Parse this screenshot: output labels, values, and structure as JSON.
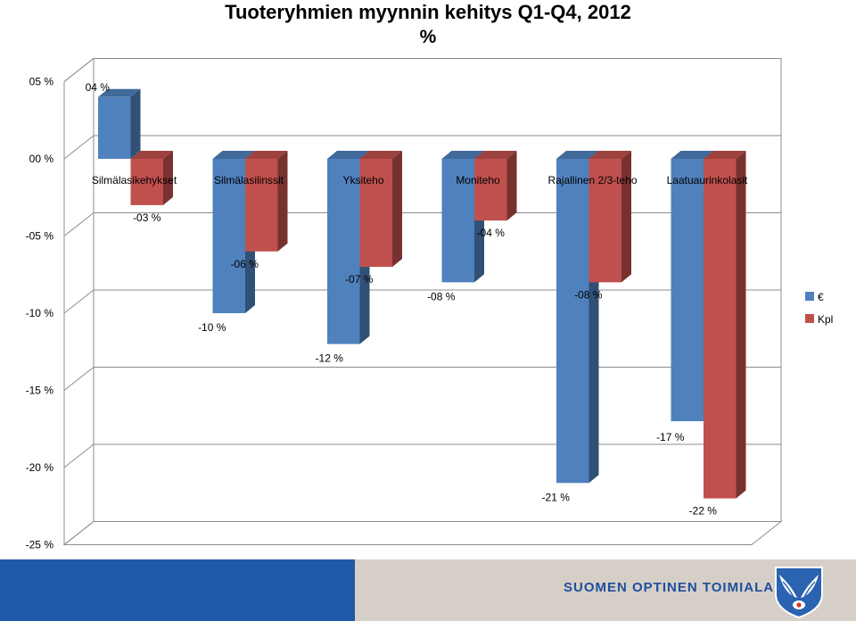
{
  "chart_data": {
    "type": "bar",
    "title": "Tuoteryhmien myynnin kehitys Q1-Q4, 2012",
    "subtitle": "%",
    "categories": [
      "Silmälasikehykset",
      "Silmälasilinssit",
      "Yksiteho",
      "Moniteho",
      "Rajallinen 2/3-teho",
      "Laatuaurinkolasit"
    ],
    "series": [
      {
        "name": "€",
        "color": "#4f81bd",
        "values": [
          4,
          -10,
          -12,
          -8,
          -21,
          -17
        ],
        "labels": [
          "04 %",
          "-10 %",
          "-12 %",
          "-08 %",
          "-21 %",
          "-17 %"
        ]
      },
      {
        "name": "Kpl",
        "color": "#c0504d",
        "values": [
          -3,
          -6,
          -7,
          -4,
          -8,
          -22
        ],
        "labels": [
          "-03 %",
          "-06 %",
          "-07 %",
          "-04 %",
          "-08 %",
          "-22 %"
        ]
      }
    ],
    "ylim": [
      -25,
      5
    ],
    "ytick_values": [
      5,
      0,
      -5,
      -10,
      -15,
      -20,
      -25
    ],
    "ytick_labels": [
      "05 %",
      "00 %",
      "-05 %",
      "-10 %",
      "-15 %",
      "-20 %",
      "-25 %"
    ],
    "grid": true,
    "legend_position": "right",
    "style": "3d-clustered-column"
  },
  "footer": {
    "organization": "SUOMEN OPTINEN TOIMIALA",
    "logo_icon": "winged-eye-logo-icon",
    "colors": {
      "left": "#2059a8",
      "right": "#d6cfc8",
      "text": "#1e4f9c"
    }
  }
}
